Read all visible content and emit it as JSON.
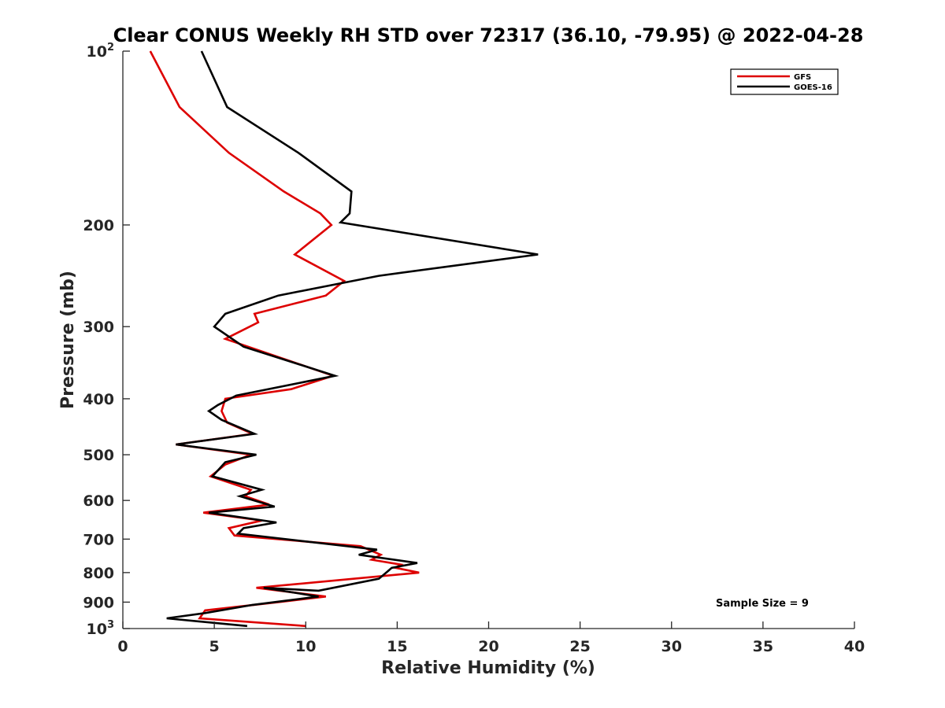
{
  "chart_data": {
    "type": "line",
    "title": "Clear CONUS Weekly RH STD over 72317 (36.10, -79.95) @ 2022-04-28",
    "xlabel": "Relative Humidity (%)",
    "ylabel": "Pressure (mb)",
    "xlim": [
      0,
      40
    ],
    "ylim": [
      100,
      1000
    ],
    "y_scale": "log",
    "y_reversed": true,
    "grid": false,
    "legend_position": "top-right",
    "x_ticks": [
      {
        "value": 0,
        "label": "0"
      },
      {
        "value": 5,
        "label": "5"
      },
      {
        "value": 10,
        "label": "10"
      },
      {
        "value": 15,
        "label": "15"
      },
      {
        "value": 20,
        "label": "20"
      },
      {
        "value": 25,
        "label": "25"
      },
      {
        "value": 30,
        "label": "30"
      },
      {
        "value": 35,
        "label": "35"
      },
      {
        "value": 40,
        "label": "40"
      }
    ],
    "y_ticks": [
      {
        "value": 100,
        "base": "10",
        "exp": "2"
      },
      {
        "value": 200,
        "label": "200"
      },
      {
        "value": 300,
        "label": "300"
      },
      {
        "value": 400,
        "label": "400"
      },
      {
        "value": 500,
        "label": "500"
      },
      {
        "value": 600,
        "label": "600"
      },
      {
        "value": 700,
        "label": "700"
      },
      {
        "value": 800,
        "label": "800"
      },
      {
        "value": 900,
        "label": "900"
      },
      {
        "value": 1000,
        "base": "10",
        "exp": "3"
      }
    ],
    "annotation": "Sample Size = 9",
    "series": [
      {
        "name": "GFS",
        "color": "#dd0000",
        "points": [
          [
            1.5,
            100
          ],
          [
            3.1,
            125
          ],
          [
            5.8,
            150
          ],
          [
            8.8,
            175
          ],
          [
            10.8,
            191
          ],
          [
            11.4,
            200
          ],
          [
            9.4,
            225
          ],
          [
            12.1,
            250
          ],
          [
            11.1,
            265
          ],
          [
            7.2,
            285
          ],
          [
            7.4,
            295
          ],
          [
            5.6,
            315
          ],
          [
            11.5,
            365
          ],
          [
            9.2,
            385
          ],
          [
            5.6,
            400
          ],
          [
            5.4,
            420
          ],
          [
            5.7,
            440
          ],
          [
            7.1,
            460
          ],
          [
            2.9,
            480
          ],
          [
            7.0,
            500
          ],
          [
            5.6,
            520
          ],
          [
            4.8,
            545
          ],
          [
            7.0,
            575
          ],
          [
            6.7,
            590
          ],
          [
            8.0,
            610
          ],
          [
            4.4,
            630
          ],
          [
            7.6,
            650
          ],
          [
            5.8,
            670
          ],
          [
            6.1,
            690
          ],
          [
            13.0,
            720
          ],
          [
            14.1,
            745
          ],
          [
            13.6,
            760
          ],
          [
            15.2,
            775
          ],
          [
            14.9,
            785
          ],
          [
            16.2,
            800
          ],
          [
            7.3,
            850
          ],
          [
            11.1,
            880
          ],
          [
            8.5,
            900
          ],
          [
            4.5,
            930
          ],
          [
            4.2,
            960
          ],
          [
            10.0,
            990
          ]
        ]
      },
      {
        "name": "GOES-16",
        "color": "#000000",
        "points": [
          [
            4.3,
            100
          ],
          [
            5.7,
            125
          ],
          [
            9.6,
            150
          ],
          [
            12.5,
            175
          ],
          [
            12.4,
            191
          ],
          [
            11.9,
            198
          ],
          [
            22.7,
            225
          ],
          [
            14.0,
            245
          ],
          [
            8.5,
            265
          ],
          [
            5.6,
            285
          ],
          [
            5.0,
            300
          ],
          [
            6.6,
            325
          ],
          [
            11.6,
            365
          ],
          [
            6.2,
            395
          ],
          [
            5.2,
            410
          ],
          [
            4.7,
            420
          ],
          [
            5.4,
            435
          ],
          [
            7.2,
            460
          ],
          [
            2.9,
            480
          ],
          [
            7.3,
            500
          ],
          [
            5.6,
            515
          ],
          [
            4.9,
            545
          ],
          [
            7.6,
            575
          ],
          [
            6.4,
            590
          ],
          [
            8.3,
            615
          ],
          [
            4.7,
            630
          ],
          [
            8.4,
            655
          ],
          [
            6.6,
            670
          ],
          [
            6.3,
            685
          ],
          [
            13.9,
            730
          ],
          [
            12.9,
            745
          ],
          [
            16.1,
            770
          ],
          [
            14.7,
            785
          ],
          [
            14.5,
            795
          ],
          [
            14.0,
            820
          ],
          [
            10.7,
            860
          ],
          [
            7.7,
            850
          ],
          [
            10.7,
            880
          ],
          [
            7.1,
            910
          ],
          [
            4.5,
            940
          ],
          [
            2.4,
            960
          ],
          [
            6.8,
            990
          ]
        ]
      }
    ]
  }
}
